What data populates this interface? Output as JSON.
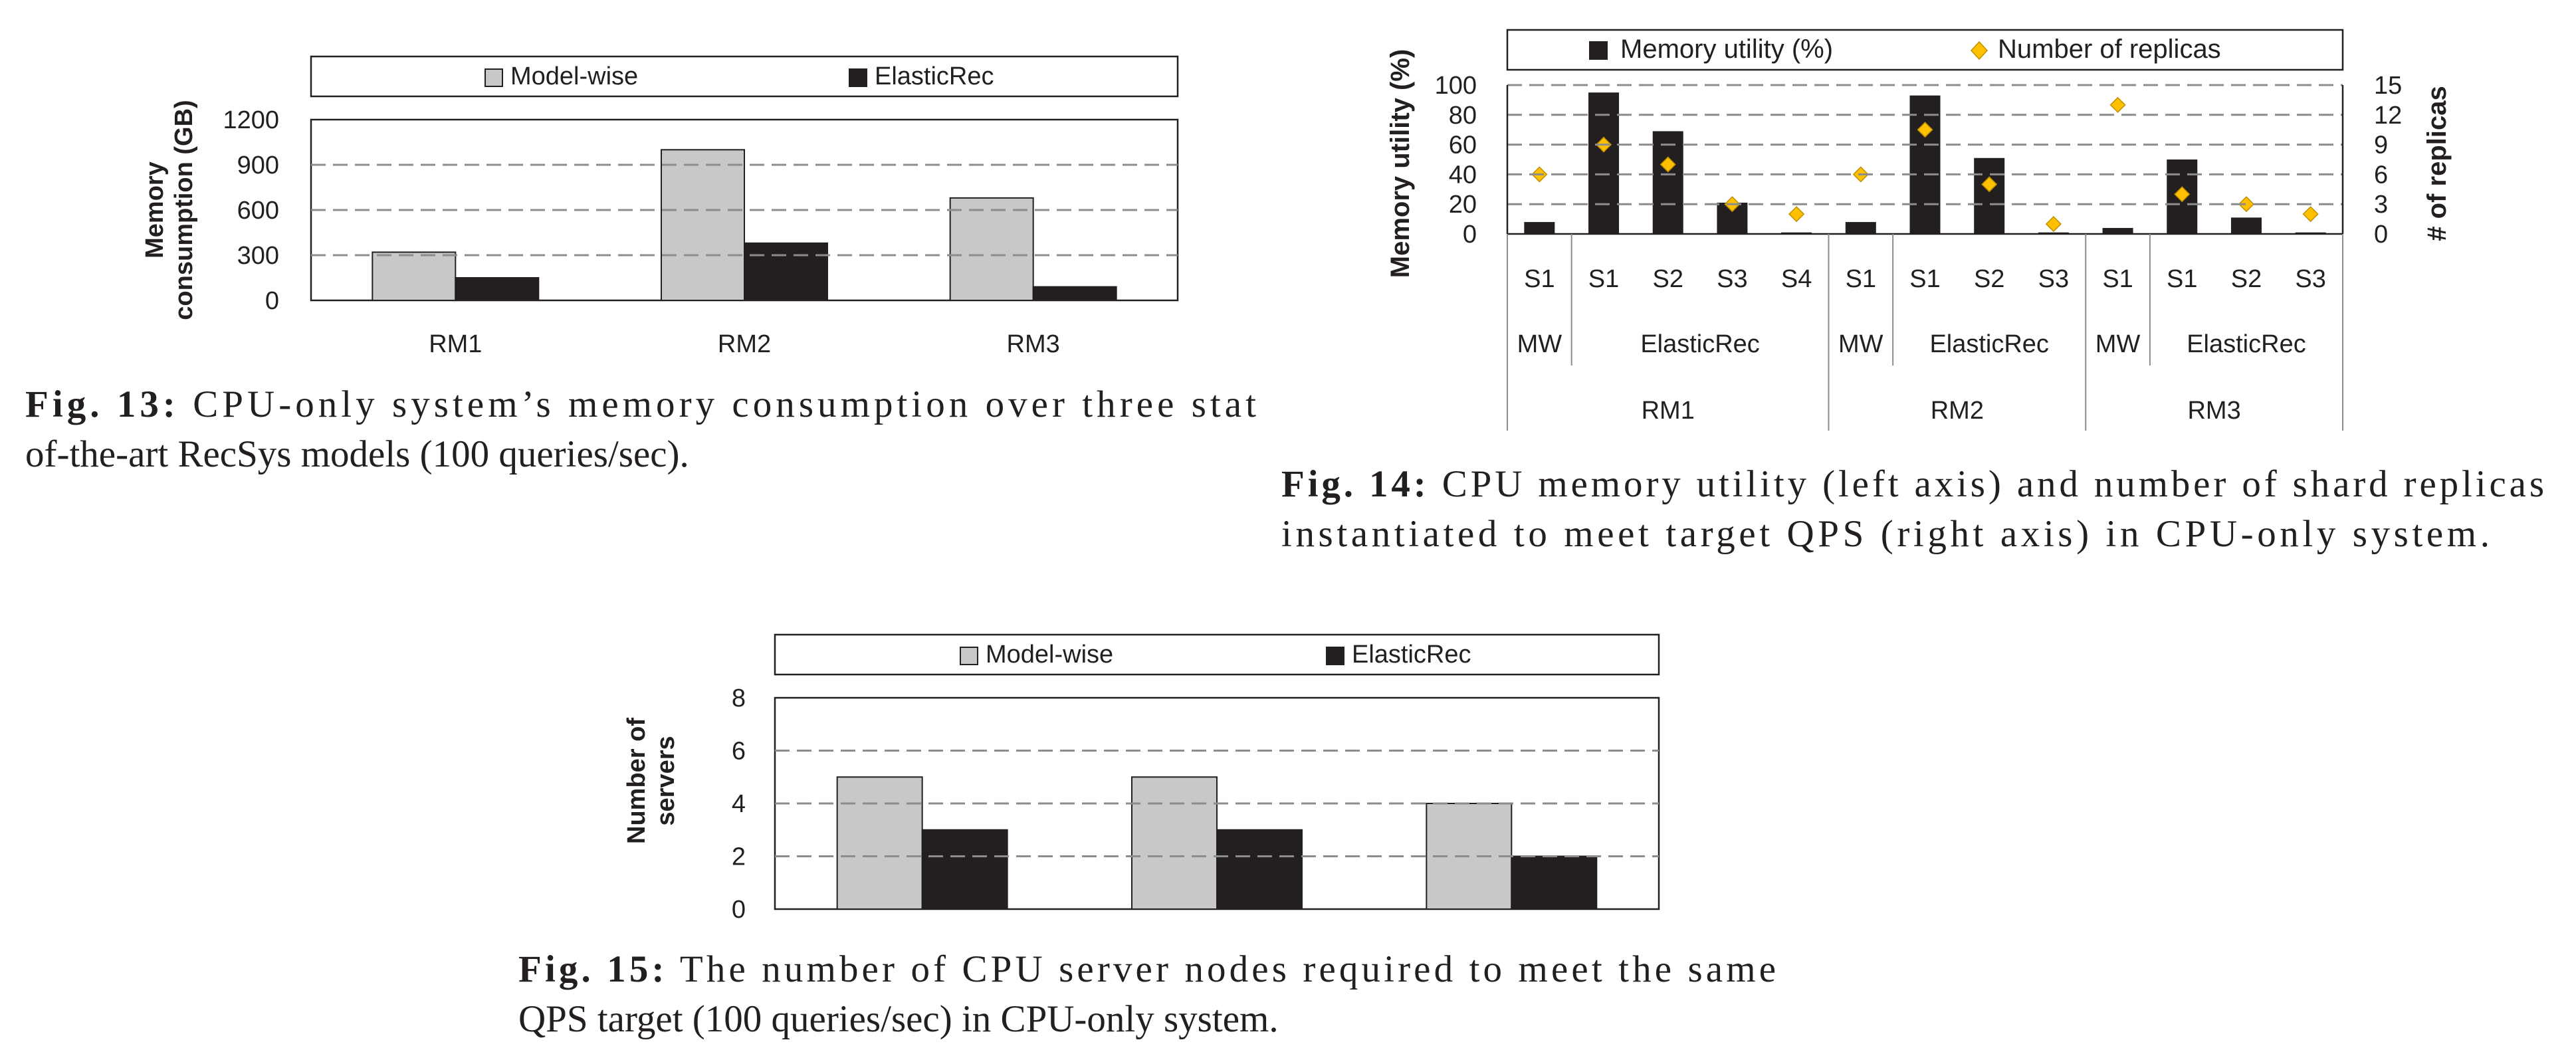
{
  "figures": [
    {
      "caption_label": "Fig. 13:",
      "caption_lines": [
        " CPU-only system’s memory consumption over three stat",
        "of-the-art RecSys models (100 queries/sec)."
      ]
    },
    {
      "caption_label": "Fig. 14:",
      "caption_lines": [
        " CPU memory utility (left axis) and number of shard replicas",
        "instantiated to meet target QPS (right axis) in CPU-only system."
      ]
    },
    {
      "caption_label": "Fig. 15:",
      "caption_lines": [
        " The number of CPU server nodes required to meet the same",
        "QPS target (100 queries/sec) in CPU-only system."
      ]
    }
  ],
  "chart_data": [
    {
      "type": "bar",
      "categories": [
        "RM1",
        "RM2",
        "RM3"
      ],
      "series": [
        {
          "name": "Model-wise",
          "values": [
            320,
            1000,
            680
          ],
          "color": "#c8c8c8"
        },
        {
          "name": "ElasticRec",
          "values": [
            150,
            380,
            90
          ],
          "color": "#231f20"
        }
      ],
      "ylabel_lines": [
        "Memory",
        "consumption (GB)"
      ],
      "ylim": [
        0,
        1200
      ],
      "yticks": [
        "0",
        "300",
        "600",
        "900",
        "1200"
      ],
      "grid": true,
      "legend": "top"
    },
    {
      "type": "bar",
      "groups": [
        {
          "name": "RM1",
          "subgroups": [
            {
              "name": "MW",
              "items": [
                {
                  "label": "S1",
                  "memory": 8,
                  "replicas": 6
                }
              ]
            },
            {
              "name": "ElasticRec",
              "items": [
                {
                  "label": "S1",
                  "memory": 95,
                  "replicas": 9
                },
                {
                  "label": "S2",
                  "memory": 69,
                  "replicas": 7
                },
                {
                  "label": "S3",
                  "memory": 21,
                  "replicas": 3
                },
                {
                  "label": "S4",
                  "memory": 1,
                  "replicas": 2
                }
              ]
            }
          ]
        },
        {
          "name": "RM2",
          "subgroups": [
            {
              "name": "MW",
              "items": [
                {
                  "label": "S1",
                  "memory": 8,
                  "replicas": 6
                }
              ]
            },
            {
              "name": "ElasticRec",
              "items": [
                {
                  "label": "S1",
                  "memory": 93,
                  "replicas": 10.5
                },
                {
                  "label": "S2",
                  "memory": 51,
                  "replicas": 5
                },
                {
                  "label": "S3",
                  "memory": 1,
                  "replicas": 1
                }
              ]
            }
          ]
        },
        {
          "name": "RM3",
          "subgroups": [
            {
              "name": "MW",
              "items": [
                {
                  "label": "S1",
                  "memory": 4,
                  "replicas": 13
                }
              ]
            },
            {
              "name": "ElasticRec",
              "items": [
                {
                  "label": "S1",
                  "memory": 50,
                  "replicas": 4
                },
                {
                  "label": "S2",
                  "memory": 11,
                  "replicas": 3
                },
                {
                  "label": "S3",
                  "memory": 1,
                  "replicas": 2
                }
              ]
            }
          ]
        }
      ],
      "series": [
        {
          "name": "Memory utility (%)",
          "type": "bar",
          "axis": "left",
          "color": "#231f20"
        },
        {
          "name": "Number of replicas",
          "type": "scatter",
          "axis": "right",
          "color": "#ffc000",
          "marker": "diamond"
        }
      ],
      "ylabel": "Memory utility (%)",
      "ylim": [
        0,
        100
      ],
      "yticks": [
        "0",
        "20",
        "40",
        "60",
        "80",
        "100"
      ],
      "y2label": "# of replicas",
      "y2lim": [
        0,
        15
      ],
      "y2ticks": [
        "0",
        "3",
        "6",
        "9",
        "12",
        "15"
      ],
      "grid": true,
      "legend": "top"
    },
    {
      "type": "bar",
      "categories": [
        "",
        "",
        ""
      ],
      "series": [
        {
          "name": "Model-wise",
          "values": [
            5,
            5,
            4
          ],
          "color": "#c8c8c8"
        },
        {
          "name": "ElasticRec",
          "values": [
            3,
            3,
            2
          ],
          "color": "#231f20"
        }
      ],
      "ylabel_lines": [
        "Number of",
        "servers"
      ],
      "ylim": [
        0,
        8
      ],
      "yticks": [
        "0",
        "2",
        "4",
        "6",
        "8"
      ],
      "grid": true,
      "legend": "top"
    }
  ]
}
